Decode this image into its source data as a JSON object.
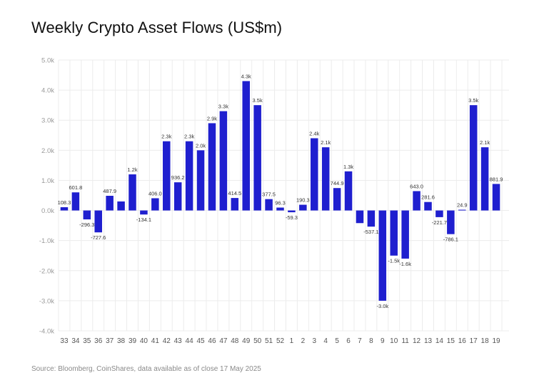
{
  "title": "Weekly Crypto Asset Flows (US$m)",
  "source": "Source: Bloomberg, CoinShares, data available as of close 17 May 2025",
  "colors": {
    "bar": "#1f1fcf",
    "grid": "#ececec",
    "axis_text": "#9a9a9a",
    "label_text": "#333333"
  },
  "chart_data": {
    "type": "bar",
    "title": "Weekly Crypto Asset Flows (US$m)",
    "xlabel": "",
    "ylabel": "",
    "ylim": [
      -4000,
      5000
    ],
    "grid": true,
    "yticks": [
      -4000,
      -3000,
      -2000,
      -1000,
      0,
      1000,
      2000,
      3000,
      4000,
      5000
    ],
    "ytick_labels": [
      "-4.0k",
      "-3.0k",
      "-2.0k",
      "-1.0k",
      "0.0k",
      "1.0k",
      "2.0k",
      "3.0k",
      "4.0k",
      "5.0k"
    ],
    "categories": [
      "33",
      "34",
      "35",
      "36",
      "37",
      "38",
      "39",
      "40",
      "41",
      "42",
      "43",
      "44",
      "45",
      "46",
      "47",
      "48",
      "49",
      "50",
      "51",
      "52",
      "1",
      "2",
      "3",
      "4",
      "5",
      "6",
      "7",
      "8",
      "9",
      "10",
      "11",
      "12",
      "13",
      "14",
      "15",
      "16",
      "17",
      "18",
      "19"
    ],
    "values": [
      108.3,
      601.8,
      -296.3,
      -727.6,
      487.9,
      300,
      1200,
      -134.1,
      406.0,
      2300,
      936.2,
      2300,
      2000,
      2900,
      3300,
      414.5,
      4300,
      3500,
      377.5,
      96.3,
      -59.3,
      190.3,
      2400,
      2100,
      744.9,
      1300,
      -420,
      -537.1,
      -3000,
      -1500,
      -1600,
      643.0,
      281.6,
      -221.7,
      -786.1,
      24.9,
      3500,
      2100,
      881.9
    ],
    "data_labels": [
      "108.3",
      "601.8",
      "-296.3",
      "-727.6",
      "487.9",
      "",
      "1.2k",
      "-134.1",
      "406.0",
      "2.3k",
      "936.2",
      "2.3k",
      "2.0k",
      "2.9k",
      "3.3k",
      "414.5",
      "4.3k",
      "3.5k",
      "377.5",
      "96.3",
      "-59.3",
      "190.3",
      "2.4k",
      "2.1k",
      "744.9",
      "1.3k",
      "",
      "-537.1",
      "-3.0k",
      "-1.5k",
      "-1.6k",
      "643.0",
      "281.6",
      "-221.7",
      "-786.1",
      "24.9",
      "3.5k",
      "2.1k",
      "881.9"
    ]
  }
}
